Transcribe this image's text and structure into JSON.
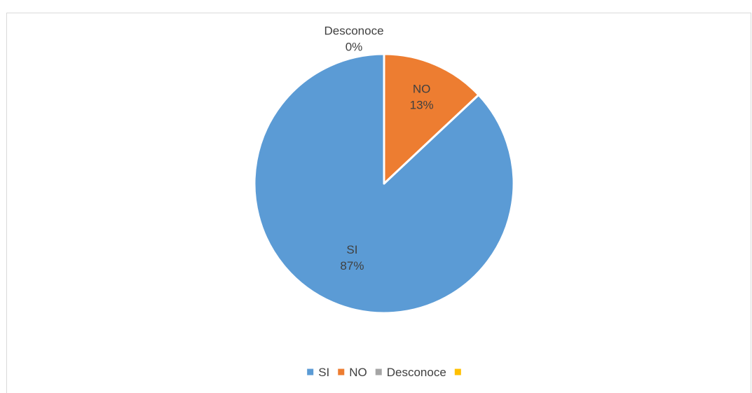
{
  "chart_data": {
    "type": "pie",
    "title": "",
    "slices": [
      {
        "label": "SI",
        "value": 87,
        "display": "87%",
        "color": "#5b9bd5"
      },
      {
        "label": "NO",
        "value": 13,
        "display": "13%",
        "color": "#ed7d31"
      },
      {
        "label": "Desconoce",
        "value": 0,
        "display": "0%",
        "color": "#a5a5a5"
      },
      {
        "label": "",
        "value": 0,
        "display": "",
        "color": "#ffc000"
      }
    ],
    "legend": {
      "position": "bottom",
      "entries": [
        {
          "label": "SI",
          "color": "#5b9bd5"
        },
        {
          "label": "NO",
          "color": "#ed7d31"
        },
        {
          "label": "Desconoce",
          "color": "#a5a5a5"
        },
        {
          "label": "",
          "color": "#ffc000"
        }
      ]
    }
  }
}
